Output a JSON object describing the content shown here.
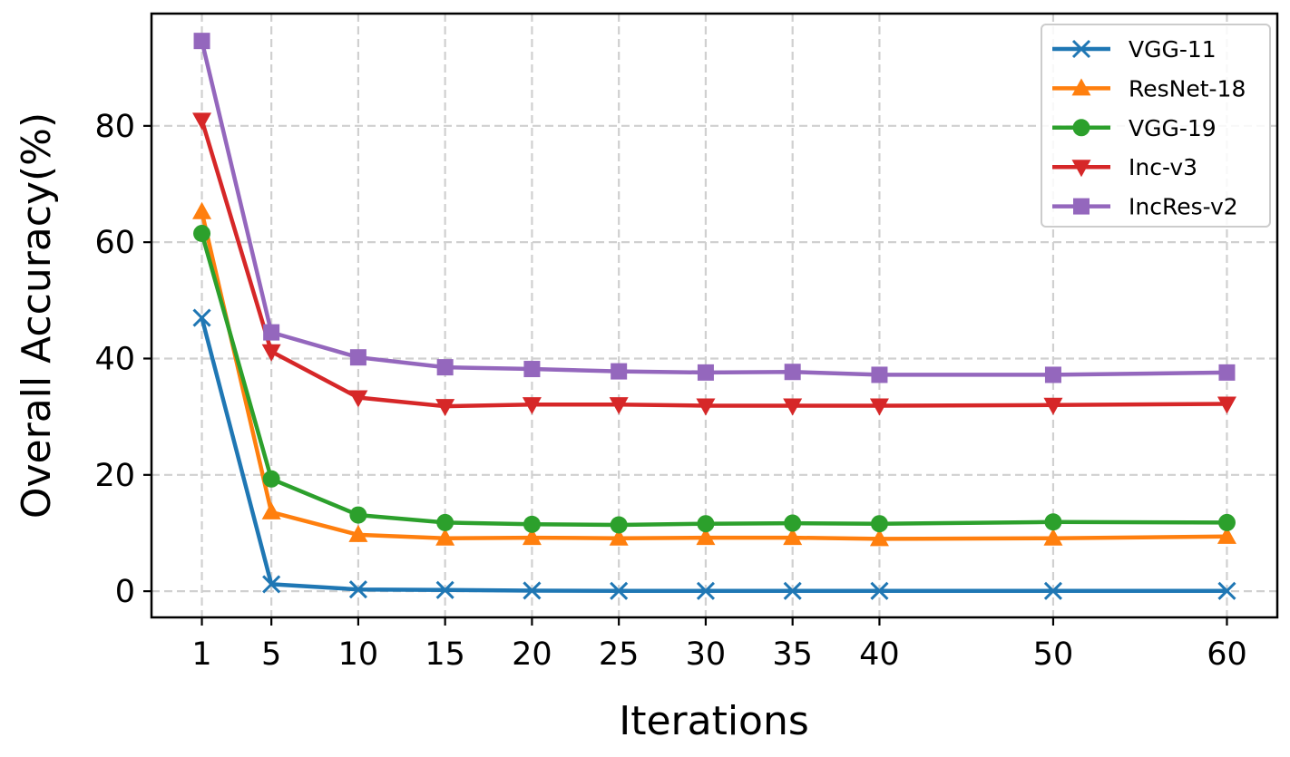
{
  "chart_data": {
    "type": "line",
    "title": "",
    "xlabel": "Iterations",
    "ylabel": "Overall Accuracy(%)",
    "x": [
      1,
      5,
      10,
      15,
      20,
      25,
      30,
      35,
      40,
      50,
      60
    ],
    "xticks": [
      "1",
      "5",
      "10",
      "15",
      "20",
      "25",
      "30",
      "35",
      "40",
      "50",
      "60"
    ],
    "yticks": [
      "0",
      "20",
      "40",
      "60",
      "80"
    ],
    "ylim": [
      -4.5,
      99.3
    ],
    "grid": true,
    "legend_position": "top-right",
    "series": [
      {
        "name": "VGG-11",
        "color": "#1f77b4",
        "marker": "x",
        "values": [
          47.0,
          1.2,
          0.3,
          0.2,
          0.1,
          0.05,
          0.05,
          0.05,
          0.05,
          0.05,
          0.05
        ]
      },
      {
        "name": "ResNet-18",
        "color": "#ff7f0e",
        "marker": "triangle-up",
        "values": [
          65.2,
          13.6,
          9.7,
          9.1,
          9.2,
          9.1,
          9.2,
          9.2,
          9.0,
          9.1,
          9.4
        ]
      },
      {
        "name": "VGG-19",
        "color": "#2ca02c",
        "marker": "circle",
        "values": [
          61.5,
          19.3,
          13.1,
          11.8,
          11.5,
          11.4,
          11.6,
          11.7,
          11.6,
          11.9,
          11.8
        ]
      },
      {
        "name": "Inc-v3",
        "color": "#d62728",
        "marker": "triangle-down",
        "values": [
          81.0,
          41.2,
          33.3,
          31.8,
          32.1,
          32.1,
          31.9,
          31.9,
          31.9,
          32.0,
          32.2
        ]
      },
      {
        "name": "IncRes-v2",
        "color": "#9467bd",
        "marker": "square",
        "values": [
          94.6,
          44.5,
          40.2,
          38.5,
          38.2,
          37.8,
          37.6,
          37.7,
          37.2,
          37.2,
          37.6
        ]
      }
    ]
  }
}
